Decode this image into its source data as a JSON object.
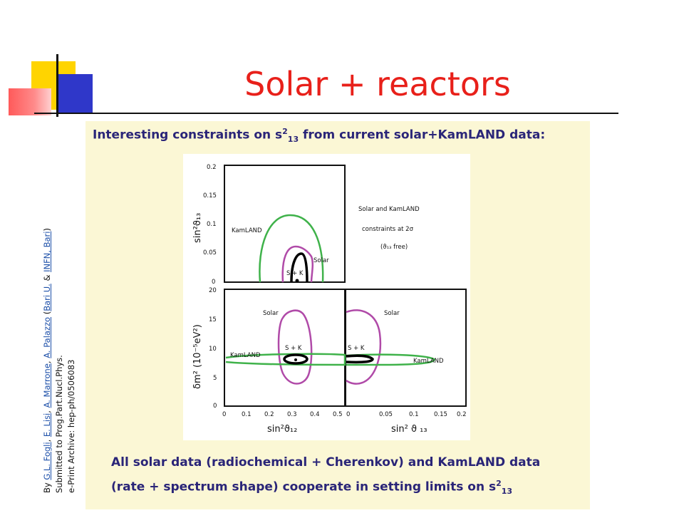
{
  "slide": {
    "title": "Solar + reactors"
  },
  "panel": {
    "top_text_pre": "Interesting constraints on s",
    "top_text_sup": "2",
    "top_text_sub": "13",
    "top_text_post": " from current solar+KamLAND data:",
    "bottom_line1": "All solar data (radiochemical + Cherenkov) and KamLAND data",
    "bottom_line2_pre": "(rate + spectrum shape)  cooperate in setting limits on s",
    "bottom_line2_sup": "2",
    "bottom_line2_sub": "13"
  },
  "figure": {
    "top_panel": {
      "ylabel": "sin²ϑ₁₃",
      "yticks": [
        "0.2",
        "0.15",
        "0.1",
        "0.05",
        "0"
      ],
      "labels": {
        "kamland": "KamLAND",
        "solar": "Solar",
        "sk": "S + K"
      }
    },
    "legend": {
      "line1": "Solar  and  KamLAND",
      "line2": "constraints  at  2σ",
      "line3": "(ϑ₁₃  free)"
    },
    "left_panel": {
      "ylabel": "δm²  (10⁻⁵eV²)",
      "yticks": [
        "20",
        "15",
        "10",
        "5",
        "0"
      ],
      "xticks": [
        "0",
        "0.1",
        "0.2",
        "0.3",
        "0.4",
        "0.5"
      ],
      "xlabel": "sin²ϑ₁₂",
      "labels": {
        "solar": "Solar",
        "kamland": "KamLAND",
        "sk": "S + K"
      }
    },
    "right_panel": {
      "xticks": [
        "0",
        "0.05",
        "0.1",
        "0.15",
        "0.2"
      ],
      "xlabel": "sin² ϑ ₁₃",
      "labels": {
        "solar": "Solar",
        "kamland": "KamLAND",
        "sk": "S + K"
      }
    },
    "colors": {
      "kamland": "#3fb24a",
      "solar": "#b04aa8",
      "sk": "#000000"
    }
  },
  "byline": {
    "by": "By ",
    "authors": [
      {
        "name": "G.L. Fogli"
      },
      {
        "name": "E. Lisi"
      },
      {
        "name": "A. Marrone"
      },
      {
        "name": "A. Palazzo"
      }
    ],
    "sep": ", ",
    "open": " (",
    "inst1": "Bari U.",
    "amp": " & ",
    "inst2": "INFN, Bari",
    "close": ")",
    "line2": "Submitted to Prog.Part.Nucl.Phys.",
    "line3": "e-Print Archive: hep-ph/0506083"
  }
}
